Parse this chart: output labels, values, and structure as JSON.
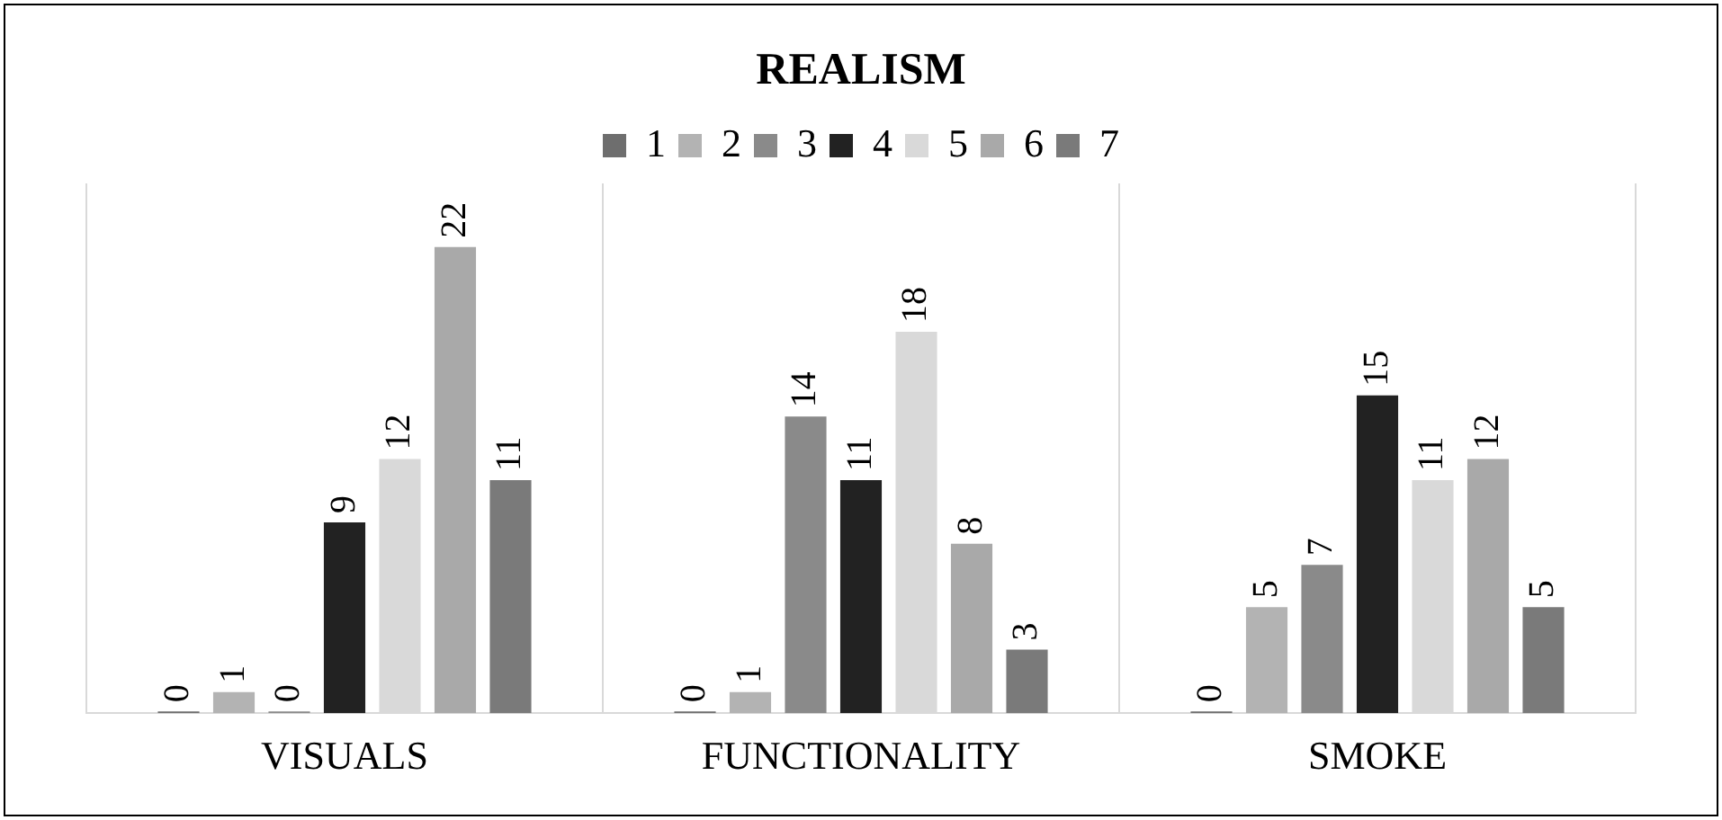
{
  "chart_data": {
    "type": "bar",
    "title": "REALISM",
    "categories": [
      "VISUALS",
      "FUNCTIONALITY",
      "SMOKE"
    ],
    "series": [
      {
        "name": "1",
        "color": "#6e6e6e",
        "values": [
          0,
          0,
          0
        ]
      },
      {
        "name": "2",
        "color": "#b3b3b3",
        "values": [
          1,
          1,
          5
        ]
      },
      {
        "name": "3",
        "color": "#8a8a8a",
        "values": [
          0,
          14,
          7
        ]
      },
      {
        "name": "4",
        "color": "#222222",
        "values": [
          9,
          11,
          15
        ]
      },
      {
        "name": "5",
        "color": "#d9d9d9",
        "values": [
          12,
          18,
          11
        ]
      },
      {
        "name": "6",
        "color": "#a9a9a9",
        "values": [
          22,
          8,
          12
        ]
      },
      {
        "name": "7",
        "color": "#7a7a7a",
        "values": [
          11,
          3,
          5
        ]
      }
    ],
    "data_labels": true,
    "grid": "x",
    "legend": "top"
  }
}
